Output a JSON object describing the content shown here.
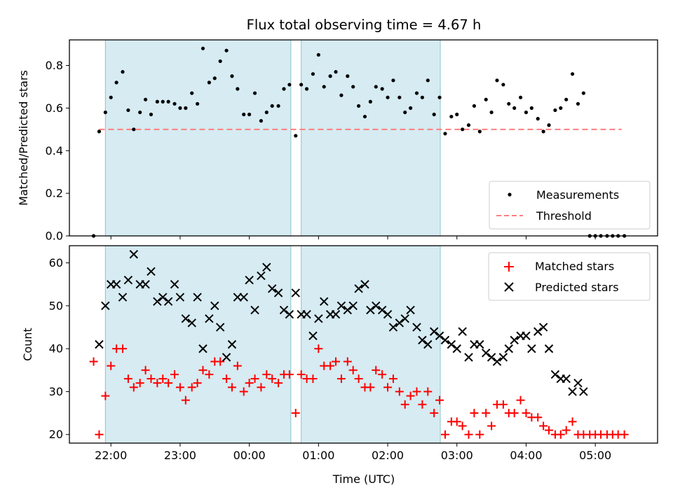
{
  "chart_data": [
    {
      "type": "scatter",
      "title": "Flux total observing time = 4.67 h",
      "xlabel": "",
      "ylabel": "Matched/Predicted stars",
      "ylim": [
        0,
        0.92
      ],
      "yticks": [
        "0.0",
        "0.2",
        "0.4",
        "0.6",
        "0.8"
      ],
      "grid": false,
      "legend": "lower-right",
      "shaded_intervals_hours": [
        [
          21.92,
          24.6
        ],
        [
          24.75,
          26.76
        ]
      ],
      "threshold": {
        "name": "Threshold",
        "value": 0.5,
        "x_range": [
          21.83,
          29.38
        ],
        "color": "#ff7f7f"
      },
      "series": [
        {
          "name": "Measurements",
          "color": "#000000",
          "x_hours": [
            21.75,
            21.83,
            21.92,
            22.0,
            22.08,
            22.17,
            22.25,
            22.33,
            22.42,
            22.5,
            22.58,
            22.67,
            22.75,
            22.83,
            22.92,
            23.0,
            23.08,
            23.17,
            23.25,
            23.33,
            23.42,
            23.5,
            23.58,
            23.67,
            23.75,
            23.83,
            23.92,
            24.0,
            24.08,
            24.17,
            24.25,
            24.33,
            24.42,
            24.5,
            24.58,
            24.67,
            24.75,
            24.83,
            24.92,
            25.0,
            25.08,
            25.17,
            25.25,
            25.33,
            25.42,
            25.5,
            25.58,
            25.67,
            25.75,
            25.83,
            25.92,
            26.0,
            26.08,
            26.17,
            26.25,
            26.33,
            26.42,
            26.5,
            26.58,
            26.67,
            26.75,
            26.83,
            26.92,
            27.0,
            27.08,
            27.17,
            27.25,
            27.33,
            27.42,
            27.5,
            27.58,
            27.67,
            27.75,
            27.83,
            27.92,
            28.0,
            28.08,
            28.17,
            28.25,
            28.33,
            28.42,
            28.5,
            28.58,
            28.67,
            28.75,
            28.83,
            28.92,
            29.0,
            29.08,
            29.17,
            29.25,
            29.33,
            29.42
          ],
          "values": [
            0.0,
            0.49,
            0.58,
            0.65,
            0.72,
            0.77,
            0.59,
            0.5,
            0.58,
            0.64,
            0.57,
            0.63,
            0.63,
            0.63,
            0.62,
            0.6,
            0.6,
            0.67,
            0.62,
            0.88,
            0.72,
            0.74,
            0.82,
            0.87,
            0.75,
            0.69,
            0.57,
            0.57,
            0.67,
            0.54,
            0.58,
            0.61,
            0.61,
            0.69,
            0.71,
            0.47,
            0.71,
            0.69,
            0.76,
            0.85,
            0.7,
            0.75,
            0.77,
            0.66,
            0.75,
            0.7,
            0.61,
            0.56,
            0.63,
            0.7,
            0.69,
            0.65,
            0.73,
            0.65,
            0.58,
            0.6,
            0.67,
            0.65,
            0.73,
            0.57,
            0.65,
            0.48,
            0.56,
            0.57,
            0.5,
            0.52,
            0.61,
            0.49,
            0.64,
            0.58,
            0.73,
            0.71,
            0.62,
            0.6,
            0.65,
            0.58,
            0.6,
            0.55,
            0.49,
            0.52,
            0.59,
            0.6,
            0.64,
            0.76,
            0.62,
            0.67,
            0.0,
            0.0,
            0.0,
            0.0,
            0.0,
            0.0,
            0.0
          ]
        }
      ]
    },
    {
      "type": "scatter",
      "title": "",
      "xlabel": "Time (UTC)",
      "ylabel": "Count",
      "xlim_hours": [
        21.4,
        29.9
      ],
      "xticks": [
        "22:00",
        "23:00",
        "00:00",
        "01:00",
        "02:00",
        "03:00",
        "04:00",
        "05:00"
      ],
      "xtick_hours": [
        22,
        23,
        24,
        25,
        26,
        27,
        28,
        29
      ],
      "ylim": [
        18,
        64
      ],
      "yticks": [
        "20",
        "30",
        "40",
        "50",
        "60"
      ],
      "grid": false,
      "legend": "top-right",
      "series": [
        {
          "name": "Matched stars",
          "color": "#ff0000",
          "marker": "plus",
          "x_hours": [
            21.75,
            21.83,
            21.92,
            22.0,
            22.08,
            22.17,
            22.25,
            22.33,
            22.42,
            22.5,
            22.58,
            22.67,
            22.75,
            22.83,
            22.92,
            23.0,
            23.08,
            23.17,
            23.25,
            23.33,
            23.42,
            23.5,
            23.58,
            23.67,
            23.75,
            23.83,
            23.92,
            24.0,
            24.08,
            24.17,
            24.25,
            24.33,
            24.42,
            24.5,
            24.58,
            24.67,
            24.75,
            24.83,
            24.92,
            25.0,
            25.08,
            25.17,
            25.25,
            25.33,
            25.42,
            25.5,
            25.58,
            25.67,
            25.75,
            25.83,
            25.92,
            26.0,
            26.08,
            26.17,
            26.25,
            26.33,
            26.42,
            26.5,
            26.58,
            26.67,
            26.75,
            26.83,
            26.92,
            27.0,
            27.08,
            27.17,
            27.25,
            27.33,
            27.42,
            27.5,
            27.58,
            27.67,
            27.75,
            27.83,
            27.92,
            28.0,
            28.08,
            28.17,
            28.25,
            28.33,
            28.42,
            28.5,
            28.58,
            28.67,
            28.75,
            28.83,
            28.92,
            29.0,
            29.08,
            29.17,
            29.25,
            29.33,
            29.42
          ],
          "values": [
            37,
            20,
            29,
            36,
            40,
            40,
            33,
            31,
            32,
            35,
            33,
            32,
            33,
            32,
            34,
            31,
            28,
            31,
            32,
            35,
            34,
            37,
            37,
            33,
            31,
            36,
            30,
            32,
            33,
            31,
            34,
            33,
            32,
            34,
            34,
            25,
            34,
            33,
            33,
            40,
            36,
            36,
            37,
            33,
            37,
            35,
            33,
            31,
            31,
            35,
            34,
            31,
            33,
            30,
            27,
            29,
            30,
            27,
            30,
            25,
            28,
            20,
            23,
            23,
            22,
            20,
            25,
            20,
            25,
            22,
            27,
            27,
            25,
            25,
            28,
            25,
            24,
            24,
            22,
            21,
            20,
            20,
            21,
            23,
            20,
            20,
            20,
            20,
            20,
            20,
            20,
            20,
            20
          ]
        },
        {
          "name": "Predicted stars",
          "color": "#000000",
          "marker": "x",
          "x_hours": [
            21.83,
            21.92,
            22.0,
            22.08,
            22.17,
            22.25,
            22.33,
            22.42,
            22.5,
            22.58,
            22.67,
            22.75,
            22.83,
            22.92,
            23.0,
            23.08,
            23.17,
            23.25,
            23.33,
            23.42,
            23.5,
            23.58,
            23.67,
            23.75,
            23.83,
            23.92,
            24.0,
            24.08,
            24.17,
            24.25,
            24.33,
            24.42,
            24.5,
            24.58,
            24.67,
            24.75,
            24.83,
            24.92,
            25.0,
            25.08,
            25.17,
            25.25,
            25.33,
            25.42,
            25.5,
            25.58,
            25.67,
            25.75,
            25.83,
            25.92,
            26.0,
            26.08,
            26.17,
            26.25,
            26.33,
            26.42,
            26.5,
            26.58,
            26.67,
            26.75,
            26.83,
            26.92,
            27.0,
            27.08,
            27.17,
            27.25,
            27.33,
            27.42,
            27.5,
            27.58,
            27.67,
            27.75,
            27.83,
            27.92,
            28.0,
            28.08,
            28.17,
            28.25,
            28.33,
            28.42,
            28.5,
            28.58,
            28.67,
            28.75,
            28.83
          ],
          "values": [
            41,
            50,
            55,
            55,
            52,
            56,
            62,
            55,
            55,
            58,
            51,
            52,
            51,
            55,
            52,
            47,
            46,
            52,
            40,
            47,
            50,
            45,
            38,
            41,
            52,
            52,
            56,
            49,
            57,
            59,
            54,
            53,
            49,
            48,
            53,
            48,
            48,
            43,
            47,
            51,
            48,
            48,
            50,
            49,
            50,
            54,
            55,
            49,
            50,
            49,
            48,
            45,
            46,
            47,
            49,
            45,
            42,
            41,
            44,
            43,
            42,
            41,
            40,
            44,
            38,
            41,
            41,
            39,
            38,
            37,
            38,
            40,
            42,
            43,
            43,
            40,
            44,
            45,
            40,
            34,
            33,
            33,
            30,
            32,
            30
          ]
        }
      ]
    }
  ]
}
